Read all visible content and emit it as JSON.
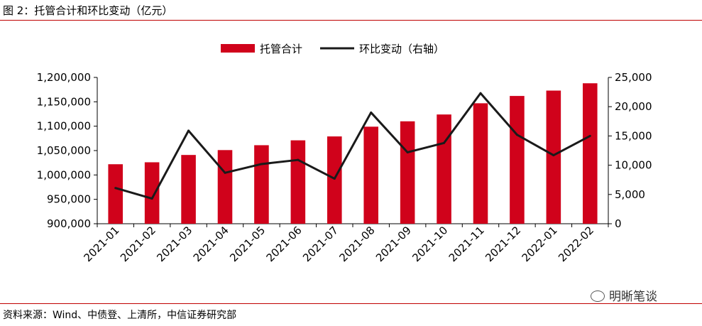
{
  "title": "图 2：托管合计和环比变动（亿元）",
  "source": "资料来源：Wind、中债登、上清所，中信证券研究部",
  "watermark": "明晰笔谈",
  "colors": {
    "bar": "#d0021b",
    "line": "#1a1a1a",
    "rule": "#c00000"
  },
  "chart_data": {
    "type": "bar",
    "categories": [
      "2021-01",
      "2021-02",
      "2021-03",
      "2021-04",
      "2021-05",
      "2021-06",
      "2021-07",
      "2021-08",
      "2021-09",
      "2021-10",
      "2021-11",
      "2021-12",
      "2022-01",
      "2022-02"
    ],
    "series": [
      {
        "name": "托管合计",
        "type": "bar",
        "axis": "left",
        "values": [
          1022000,
          1026000,
          1041000,
          1051000,
          1061000,
          1071000,
          1079000,
          1099000,
          1110000,
          1124000,
          1147000,
          1162000,
          1173000,
          1188000
        ]
      },
      {
        "name": "环比变动（右轴）",
        "type": "line",
        "axis": "right",
        "values": [
          6100,
          4300,
          15900,
          8700,
          10200,
          10900,
          7700,
          19000,
          12200,
          13800,
          22300,
          15200,
          11700,
          15000
        ]
      }
    ],
    "y_left": {
      "min": 900000,
      "max": 1200000,
      "step": 50000,
      "ticks": [
        "900,000",
        "950,000",
        "1,000,000",
        "1,050,000",
        "1,100,000",
        "1,150,000",
        "1,200,000"
      ]
    },
    "y_right": {
      "min": 0,
      "max": 25000,
      "step": 5000,
      "ticks": [
        "0",
        "5,000",
        "10,000",
        "15,000",
        "20,000",
        "25,000"
      ]
    },
    "legend_position": "top-center",
    "grid": false
  }
}
